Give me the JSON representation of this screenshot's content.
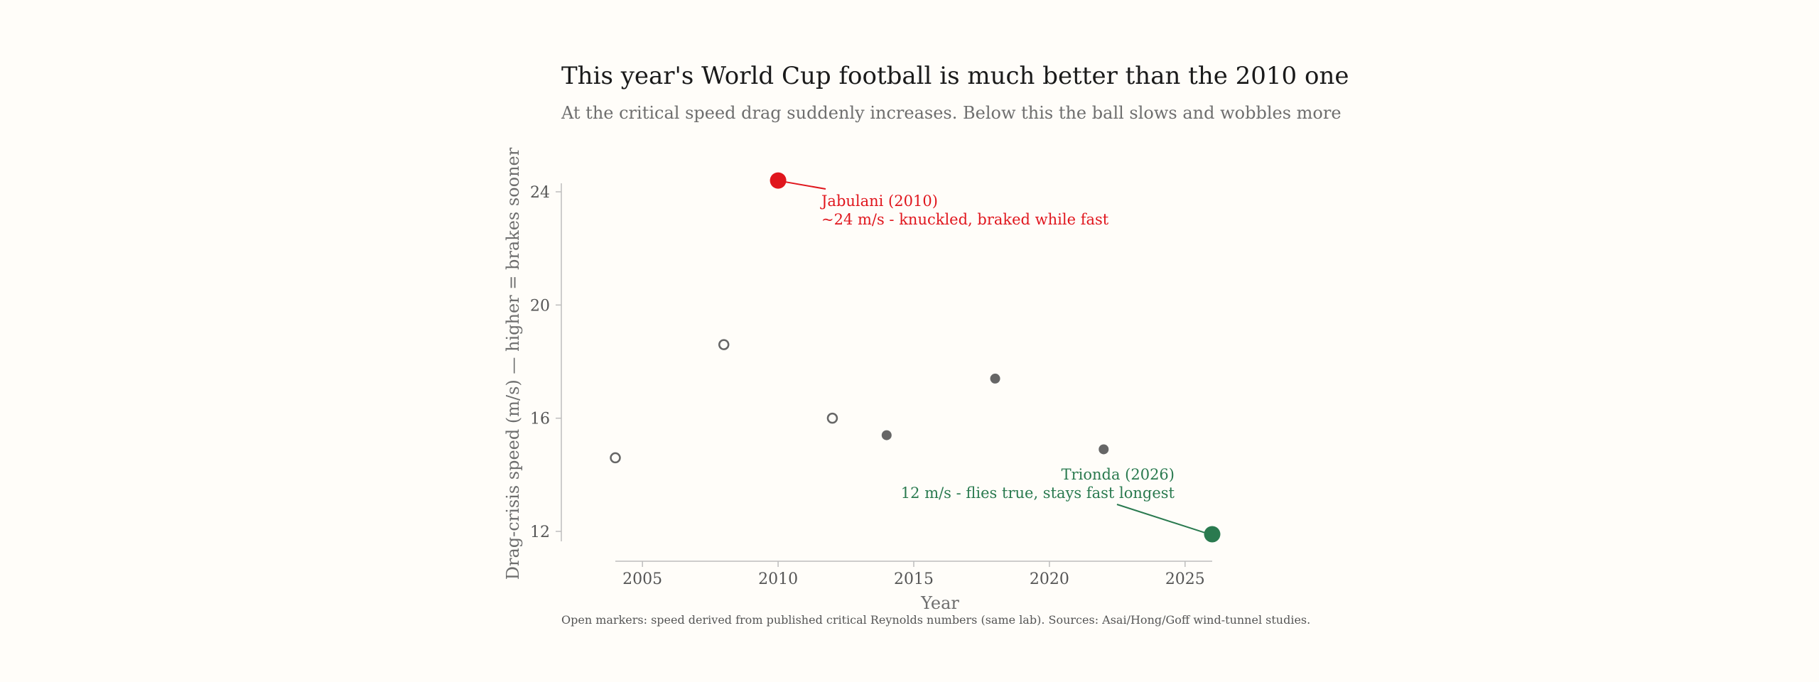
{
  "chart_data": {
    "type": "scatter",
    "title": "This year's World Cup football is much better than the 2010 one",
    "subtitle": "At the critical speed drag suddenly increases. Below this the ball slows and wobbles more",
    "xlabel": "Year",
    "ylabel": "Drag-crisis speed (m/s)  —  higher = brakes sooner",
    "note": "Open markers: speed derived from published critical Reynolds numbers (same lab). Sources: Asai/Hong/Goff wind-tunnel studies.",
    "xlim": [
      2004,
      2026
    ],
    "ylim": [
      12,
      24
    ],
    "xticks": [
      2005,
      2010,
      2015,
      2020,
      2025
    ],
    "yticks": [
      12,
      16,
      20,
      24
    ],
    "grid": false,
    "points": [
      {
        "x": 2004,
        "y": 14.6,
        "style": "open"
      },
      {
        "x": 2008,
        "y": 18.6,
        "style": "open"
      },
      {
        "x": 2010,
        "y": 24.4,
        "style": "highlight-red"
      },
      {
        "x": 2012,
        "y": 16.0,
        "style": "open"
      },
      {
        "x": 2014,
        "y": 15.4,
        "style": "filled"
      },
      {
        "x": 2018,
        "y": 17.4,
        "style": "filled"
      },
      {
        "x": 2022,
        "y": 14.9,
        "style": "filled"
      },
      {
        "x": 2026,
        "y": 11.9,
        "style": "highlight-green"
      }
    ],
    "annotations": [
      {
        "x": 2010,
        "y": 24.4,
        "lines": [
          "Jabulani (2010)",
          "~24 m/s - knuckled, braked while fast"
        ],
        "color": "#e0161d",
        "align": "left"
      },
      {
        "x": 2026,
        "y": 11.9,
        "lines": [
          "Trionda (2026)",
          "12 m/s - flies true, stays fast longest"
        ],
        "color": "#2a7a4f",
        "align": "right"
      }
    ],
    "colors": {
      "red": "#e0161d",
      "green": "#2a7a4f",
      "marker": "#666666",
      "axis": "#bdbdbd"
    }
  }
}
